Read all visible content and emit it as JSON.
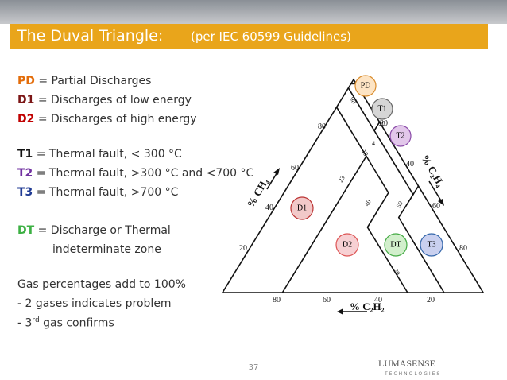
{
  "header": {
    "title": "The Duval Triangle:",
    "subtitle": "(per IEC 60599 Guidelines)"
  },
  "legend": [
    {
      "code": "PD",
      "text": " = Partial Discharges"
    },
    {
      "code": "D1",
      "text": " = Discharges of low energy"
    },
    {
      "code": "D2",
      "text": " = Discharges of high energy"
    },
    {
      "code": "T1",
      "text": " = Thermal fault, < 300 °C"
    },
    {
      "code": "T2",
      "text": " = Thermal fault, >300 °C and <700 °C"
    },
    {
      "code": "T3",
      "text": " = Thermal fault, >700 °C"
    },
    {
      "code": "DT",
      "text": " = Discharge or Thermal"
    }
  ],
  "legend_continuation": "indeterminate zone",
  "notes": [
    "Gas percentages add to 100%",
    "- 2 gases indicates problem",
    {
      "prefix": "- 3",
      "sup": "rd",
      "suffix": " gas confirms"
    }
  ],
  "diagram": {
    "zones": [
      "PD",
      "T1",
      "T2",
      "D1",
      "D2",
      "DT",
      "T3"
    ],
    "axis_labels": {
      "left": "% CH₄",
      "right": "% C₂H₄",
      "bottom": "% C₂H₂"
    },
    "left_ticks": [
      "80",
      "60",
      "40",
      "20"
    ],
    "right_ticks": [
      "20",
      "40",
      "60",
      "80"
    ],
    "bottom_ticks": [
      "80",
      "60",
      "40",
      "20"
    ],
    "boundary_labels": [
      "98",
      "20",
      "4",
      "13",
      "23",
      "40",
      "50",
      "29"
    ]
  },
  "footer": {
    "page": "37",
    "logo": "LUMASENSE",
    "logo_sub": "TECHNOLOGIES"
  }
}
